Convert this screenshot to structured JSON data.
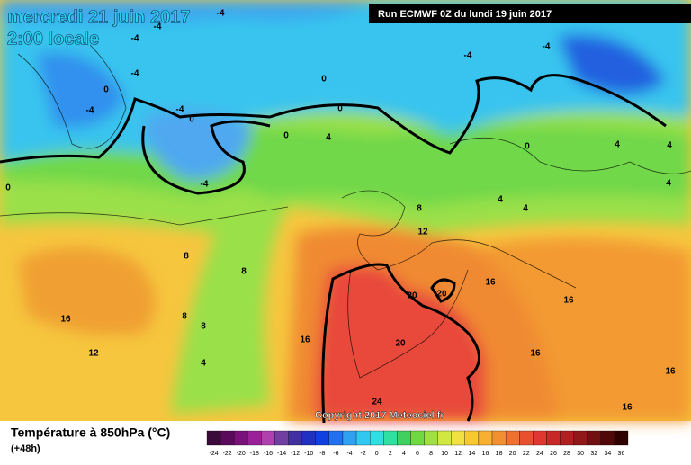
{
  "header": {
    "title": "mercredi 21 juin 2017",
    "subtitle": "2:00 locale",
    "run": "Run ECMWF 0Z du lundi 19 juin 2017"
  },
  "map": {
    "contour_labels": [
      "-4",
      "-4",
      "-4",
      "-4",
      "-4",
      "-4",
      "-4",
      "-4",
      "-4",
      "0",
      "0",
      "0",
      "0",
      "0",
      "0",
      "0",
      "4",
      "4",
      "4",
      "4",
      "4",
      "4",
      "8",
      "12",
      "8",
      "8",
      "8",
      "8",
      "4",
      "16",
      "12",
      "16",
      "16",
      "16",
      "16",
      "16",
      "16",
      "20",
      "20",
      "20",
      "24"
    ]
  },
  "footer": {
    "legend_title": "Température à 850hPa (°C)",
    "lead": "(+48h)",
    "copyright": "Copyright 2017 Meteociel.fr"
  },
  "colorbar": {
    "labels": [
      -24,
      -22,
      -20,
      -18,
      -16,
      -14,
      -12,
      -10,
      -8,
      -6,
      -4,
      -2,
      0,
      2,
      4,
      6,
      8,
      10,
      12,
      14,
      16,
      18,
      20,
      22,
      24,
      26,
      28,
      30,
      32,
      34,
      36
    ],
    "colors": [
      "#3a0a3a",
      "#5a0a5a",
      "#7a107a",
      "#9a209a",
      "#b040b0",
      "#7040a0",
      "#4030a0",
      "#2030c0",
      "#1040e0",
      "#2070f0",
      "#30a0f0",
      "#30c8f0",
      "#30e0e0",
      "#30e0a0",
      "#40d060",
      "#70d840",
      "#a0e040",
      "#d0e840",
      "#f0e040",
      "#f8c830",
      "#f8b030",
      "#f09030",
      "#f07030",
      "#e85030",
      "#e03830",
      "#c82828",
      "#b02020",
      "#901818",
      "#701010",
      "#500808",
      "#300000"
    ]
  }
}
